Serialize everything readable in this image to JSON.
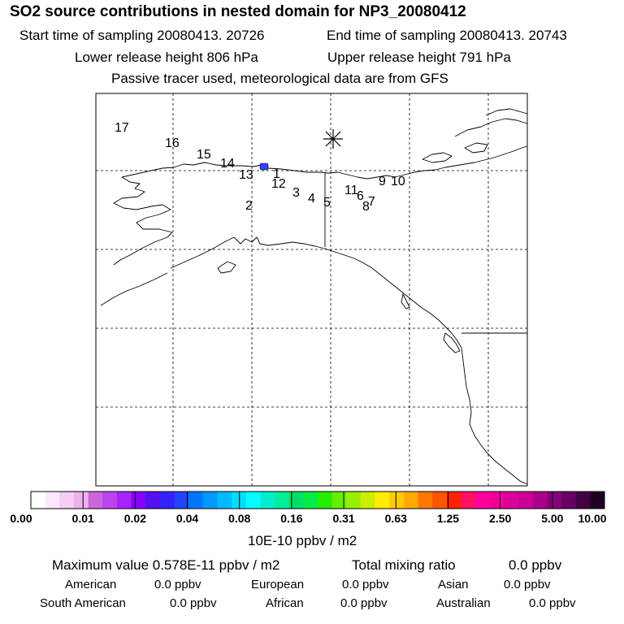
{
  "header": {
    "title": "SO2 source contributions in nested domain for NP3_20080412",
    "start_label": "Start time of sampling 20080413. 20726",
    "end_label": "End time of sampling 20080413. 20743",
    "lower_label": "Lower release height  806 hPa",
    "upper_label": "Upper release height  791 hPa",
    "note": "Passive tracer used, meteorological data are from GFS"
  },
  "map": {
    "site_labels": [
      "1",
      "2",
      "3",
      "4",
      "5",
      "6",
      "7",
      "8",
      "9",
      "10",
      "11",
      "12",
      "13",
      "14",
      "15",
      "16",
      "17"
    ],
    "marker_icon": "asterisk-icon"
  },
  "colorbar": {
    "colors": [
      "#ffffff",
      "#fbe8fb",
      "#f4ccf4",
      "#eeb0ee",
      "#cc66dd",
      "#bb44ee",
      "#aa22ff",
      "#8800ff",
      "#5511ee",
      "#3322ff",
      "#2244ff",
      "#0077ff",
      "#0099ff",
      "#00bbff",
      "#00ddff",
      "#00ffff",
      "#00eecc",
      "#00ee99",
      "#00dd66",
      "#00ee44",
      "#22ee00",
      "#66ee00",
      "#99ee00",
      "#ccee00",
      "#ffee00",
      "#ffcc00",
      "#ffaa00",
      "#ff7700",
      "#ff5500",
      "#ff2200",
      "#ff1166",
      "#ff0099",
      "#ee0099",
      "#dd0099",
      "#cc0099",
      "#aa0088",
      "#880077",
      "#660066",
      "#440044",
      "#220022"
    ],
    "ticks": [
      "0.00",
      "0.01",
      "0.02",
      "0.04",
      "0.08",
      "0.16",
      "0.31",
      "0.63",
      "1.25",
      "2.50",
      "5.00",
      "10.00"
    ],
    "unit": "10E-10 ppbv / m2"
  },
  "stats": {
    "max_label": "Maximum value  0.578E-11 ppbv / m2",
    "total_label": "Total mixing ratio",
    "total_value": "0.0 ppbv",
    "regions": [
      {
        "name": "American",
        "value": "0.0 ppbv"
      },
      {
        "name": "European",
        "value": "0.0 ppbv"
      },
      {
        "name": "Asian",
        "value": "0.0 ppbv"
      },
      {
        "name": "South American",
        "value": "0.0 ppbv"
      },
      {
        "name": "African",
        "value": "0.0 ppbv"
      },
      {
        "name": "Australian",
        "value": "0.0 ppbv"
      }
    ]
  },
  "colors": {
    "hotspot": "#3344ff",
    "frame": "#000000"
  }
}
